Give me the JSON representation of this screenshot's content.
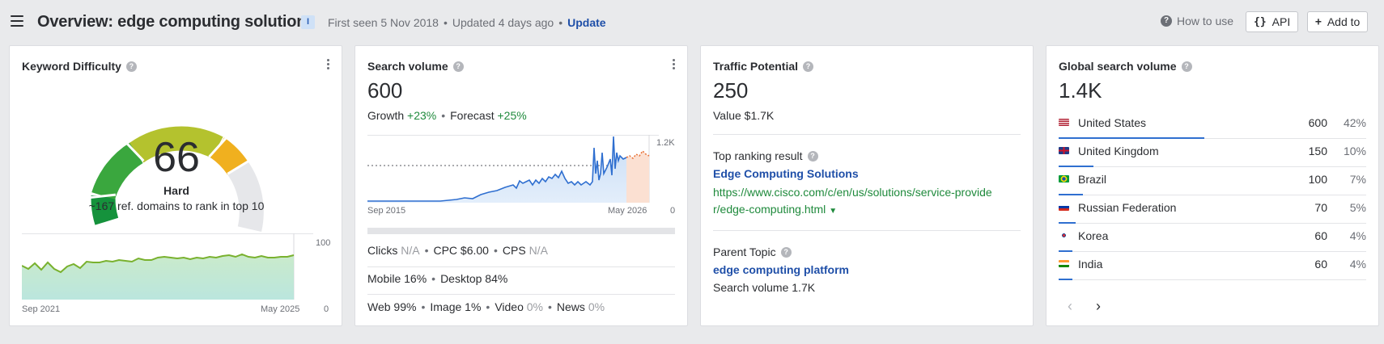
{
  "header": {
    "title": "Overview: edge computing solutions",
    "badge": "I",
    "first_seen": "First seen 5 Nov 2018",
    "updated": "Updated 4 days ago",
    "update_link": "Update",
    "how_to_use": "How to use",
    "api_label": "API",
    "add_to_label": "Add to"
  },
  "kd": {
    "title": "Keyword Difficulty",
    "value": "66",
    "level": "Hard",
    "note": "~167 ref. domains to rank in top 10",
    "axis_start": "Sep 2021",
    "axis_end": "May 2025",
    "axis_max": "100",
    "axis_min": "0"
  },
  "sv": {
    "title": "Search volume",
    "value": "600",
    "growth_label": "Growth",
    "growth_value": "+23%",
    "forecast_label": "Forecast",
    "forecast_value": "+25%",
    "axis_start": "Sep 2015",
    "axis_end": "May 2026",
    "axis_max": "1.2K",
    "axis_min": "0",
    "clicks_label": "Clicks",
    "clicks_value": "N/A",
    "cpc": "CPC $6.00",
    "cps_label": "CPS",
    "cps_value": "N/A",
    "mobile": "Mobile 16%",
    "desktop": "Desktop 84%",
    "web": "Web 99%",
    "image": "Image 1%",
    "video_label": "Video",
    "video_value": "0%",
    "news_label": "News",
    "news_value": "0%"
  },
  "tp": {
    "title": "Traffic Potential",
    "value": "250",
    "value_line": "Value $1.7K",
    "top_result_label": "Top ranking result",
    "top_result_title": "Edge Computing Solutions",
    "top_result_url_1": "https://www.cisco.com/c/en/us/solutions/service-provide",
    "top_result_url_2": "r/edge-computing.html",
    "parent_label": "Parent Topic",
    "parent_title": "edge computing platform",
    "parent_volume": "Search volume 1.7K"
  },
  "gsv": {
    "title": "Global search volume",
    "value": "1.4K",
    "countries": [
      {
        "name": "United States",
        "value": "600",
        "pct": "42%",
        "share": 0.42
      },
      {
        "name": "United Kingdom",
        "value": "150",
        "pct": "10%",
        "share": 0.1
      },
      {
        "name": "Brazil",
        "value": "100",
        "pct": "7%",
        "share": 0.07
      },
      {
        "name": "Russian Federation",
        "value": "70",
        "pct": "5%",
        "share": 0.05
      },
      {
        "name": "Korea",
        "value": "60",
        "pct": "4%",
        "share": 0.04
      },
      {
        "name": "India",
        "value": "60",
        "pct": "4%",
        "share": 0.04
      }
    ]
  },
  "colors": {
    "accent_blue": "#2f6fd0",
    "link_blue": "#1f4fa8",
    "positive_green": "#1f8a3c",
    "forecast_orange": "#e8743b"
  }
}
